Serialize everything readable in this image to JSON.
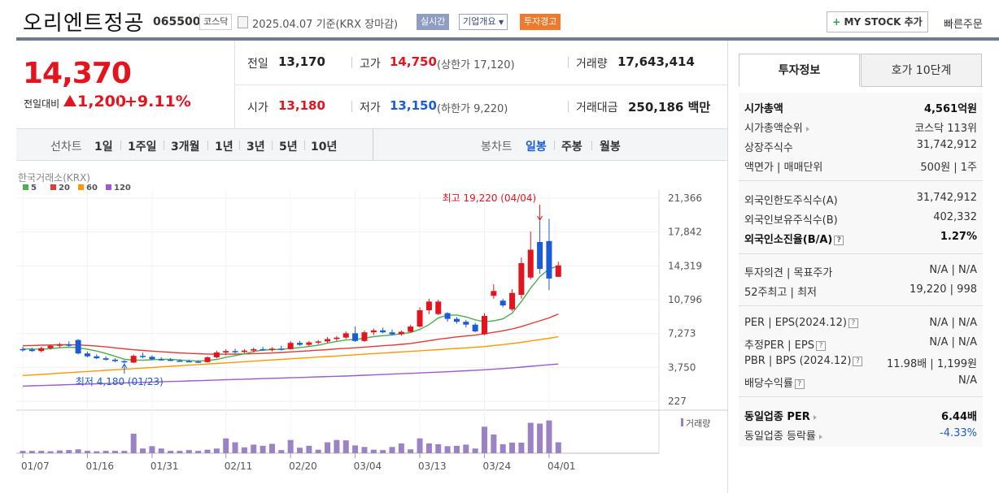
{
  "header": {
    "company": "오리엔트정공",
    "code": "065500",
    "market": "코스닥",
    "date_text": "2025.04.07  기준(KRX 장마감)",
    "realtime": "실시간",
    "company_info": "기업개요",
    "warning": "투자경고",
    "mystock": "MY STOCK 추가",
    "quick_order": "빠른주문"
  },
  "price": {
    "current": "14,370",
    "diff_label": "전일대비",
    "diff": "1,200",
    "pct": "+9.11%"
  },
  "quote": {
    "prev_label": "전일",
    "prev": "13,170",
    "high_label": "고가",
    "high": "14,750",
    "upper": "(상한가 17,120)",
    "volume_label": "거래량",
    "volume": "17,643,414",
    "open_label": "시가",
    "open": "13,180",
    "low_label": "저가",
    "low": "13,150",
    "lower": "(하한가 9,220)",
    "amount_label": "거래대금",
    "amount": "250,186",
    "amount_unit": "백만"
  },
  "period_bar": {
    "line_label": "선차트",
    "ranges": [
      "1일",
      "1주일",
      "3개월",
      "1년",
      "3년",
      "5년",
      "10년"
    ],
    "candle_label": "봉차트",
    "candle": [
      "일봉",
      "주봉",
      "월봉"
    ]
  },
  "chart_data": {
    "type": "candlestick",
    "source": "한국거래소(KRX)",
    "legend": [
      {
        "name": "5",
        "color": "#4caf50"
      },
      {
        "name": "20",
        "color": "#e53935"
      },
      {
        "name": "60",
        "color": "#ff9800"
      },
      {
        "name": "120",
        "color": "#9c59d1"
      }
    ],
    "y_ticks": [
      "21,366",
      "17,842",
      "14,319",
      "10,796",
      "7,273",
      "3,750",
      "227"
    ],
    "ylim": [
      227,
      21366
    ],
    "x_ticks": [
      "01/07",
      "01/16",
      "01/31",
      "02/11",
      "02/20",
      "03/04",
      "03/13",
      "03/24",
      "04/01"
    ],
    "x_tick_index": [
      0,
      7,
      14,
      22,
      29,
      36,
      43,
      50,
      57
    ],
    "high_note": "최고 19,220 (04/04)",
    "low_note": "최저 4,180 (01/23)",
    "volume_label": "거래량",
    "candles": [
      {
        "o": 5650,
        "h": 5900,
        "l": 5400,
        "c": 5600
      },
      {
        "o": 5600,
        "h": 5800,
        "l": 5350,
        "c": 5450
      },
      {
        "o": 5450,
        "h": 5900,
        "l": 5300,
        "c": 5750
      },
      {
        "o": 5750,
        "h": 6100,
        "l": 5600,
        "c": 6000
      },
      {
        "o": 6000,
        "h": 6300,
        "l": 5800,
        "c": 6150
      },
      {
        "o": 6150,
        "h": 6450,
        "l": 5900,
        "c": 6000
      },
      {
        "o": 6600,
        "h": 6700,
        "l": 5100,
        "c": 5200
      },
      {
        "o": 5200,
        "h": 5400,
        "l": 4800,
        "c": 4900
      },
      {
        "o": 4900,
        "h": 5100,
        "l": 4600,
        "c": 4700
      },
      {
        "o": 4700,
        "h": 4900,
        "l": 4450,
        "c": 4550
      },
      {
        "o": 4550,
        "h": 4700,
        "l": 4300,
        "c": 4400
      },
      {
        "o": 4400,
        "h": 4500,
        "l": 4180,
        "c": 4300
      },
      {
        "o": 4250,
        "h": 5100,
        "l": 4200,
        "c": 4950
      },
      {
        "o": 4950,
        "h": 5300,
        "l": 4700,
        "c": 4850
      },
      {
        "o": 4850,
        "h": 5000,
        "l": 4500,
        "c": 4600
      },
      {
        "o": 4600,
        "h": 4800,
        "l": 4450,
        "c": 4550
      },
      {
        "o": 4550,
        "h": 4700,
        "l": 4400,
        "c": 4450
      },
      {
        "o": 4450,
        "h": 4600,
        "l": 4350,
        "c": 4400
      },
      {
        "o": 4400,
        "h": 4550,
        "l": 4300,
        "c": 4350
      },
      {
        "o": 4350,
        "h": 4500,
        "l": 4250,
        "c": 4300
      },
      {
        "o": 4300,
        "h": 4900,
        "l": 4250,
        "c": 4800
      },
      {
        "o": 4800,
        "h": 5500,
        "l": 4700,
        "c": 5300
      },
      {
        "o": 5300,
        "h": 5650,
        "l": 5000,
        "c": 5450
      },
      {
        "o": 5450,
        "h": 5700,
        "l": 5200,
        "c": 5350
      },
      {
        "o": 5350,
        "h": 5650,
        "l": 5200,
        "c": 5500
      },
      {
        "o": 5500,
        "h": 5800,
        "l": 5300,
        "c": 5650
      },
      {
        "o": 5650,
        "h": 5900,
        "l": 5450,
        "c": 5600
      },
      {
        "o": 5600,
        "h": 5850,
        "l": 5400,
        "c": 5700
      },
      {
        "o": 5700,
        "h": 6000,
        "l": 5500,
        "c": 5650
      },
      {
        "o": 5650,
        "h": 6500,
        "l": 5600,
        "c": 6300
      },
      {
        "o": 6300,
        "h": 6500,
        "l": 6000,
        "c": 6100
      },
      {
        "o": 6100,
        "h": 6500,
        "l": 5950,
        "c": 6350
      },
      {
        "o": 6350,
        "h": 6600,
        "l": 6150,
        "c": 6450
      },
      {
        "o": 6450,
        "h": 6900,
        "l": 6300,
        "c": 6700
      },
      {
        "o": 6700,
        "h": 7000,
        "l": 6500,
        "c": 6850
      },
      {
        "o": 6850,
        "h": 7500,
        "l": 6700,
        "c": 7300
      },
      {
        "o": 7300,
        "h": 8000,
        "l": 6400,
        "c": 6500
      },
      {
        "o": 6500,
        "h": 7600,
        "l": 6400,
        "c": 7400
      },
      {
        "o": 7400,
        "h": 7800,
        "l": 7100,
        "c": 7600
      },
      {
        "o": 7600,
        "h": 7900,
        "l": 7300,
        "c": 7400
      },
      {
        "o": 7400,
        "h": 7700,
        "l": 7050,
        "c": 7200
      },
      {
        "o": 7200,
        "h": 7600,
        "l": 7050,
        "c": 7450
      },
      {
        "o": 7450,
        "h": 8200,
        "l": 7400,
        "c": 8000
      },
      {
        "o": 8000,
        "h": 10000,
        "l": 7900,
        "c": 9700
      },
      {
        "o": 9700,
        "h": 10900,
        "l": 9300,
        "c": 10600
      },
      {
        "o": 9300,
        "h": 10800,
        "l": 9200,
        "c": 10600
      },
      {
        "o": 9400,
        "h": 9500,
        "l": 8500,
        "c": 8800
      },
      {
        "o": 8800,
        "h": 9000,
        "l": 8300,
        "c": 8500
      },
      {
        "o": 8500,
        "h": 8700,
        "l": 7900,
        "c": 8200
      },
      {
        "o": 8200,
        "h": 8400,
        "l": 7400,
        "c": 7500
      },
      {
        "o": 7200,
        "h": 9400,
        "l": 7100,
        "c": 9100
      },
      {
        "o": 11200,
        "h": 12400,
        "l": 10900,
        "c": 11700
      },
      {
        "o": 10700,
        "h": 10900,
        "l": 10000,
        "c": 10200
      },
      {
        "o": 9800,
        "h": 11900,
        "l": 9600,
        "c": 11500
      },
      {
        "o": 11300,
        "h": 15200,
        "l": 10900,
        "c": 14600
      },
      {
        "o": 13100,
        "h": 17900,
        "l": 12900,
        "c": 16000
      },
      {
        "o": 16800,
        "h": 19000,
        "l": 13500,
        "c": 14000
      },
      {
        "o": 16900,
        "h": 19220,
        "l": 11800,
        "c": 13000
      },
      {
        "o": 13180,
        "h": 14750,
        "l": 13150,
        "c": 14370
      }
    ],
    "ma5": [
      5700,
      5650,
      5650,
      5700,
      5800,
      5850,
      5800,
      5650,
      5450,
      5200,
      4900,
      4600,
      4500,
      4500,
      4550,
      4600,
      4580,
      4520,
      4450,
      4420,
      4460,
      4580,
      4800,
      4980,
      5150,
      5400,
      5550,
      5600,
      5630,
      5720,
      5820,
      5930,
      6060,
      6280,
      6450,
      6600,
      6650,
      6800,
      6950,
      7050,
      7130,
      7250,
      7380,
      7700,
      8200,
      8900,
      9200,
      9200,
      9000,
      8700,
      8500,
      8600,
      8800,
      9400,
      10600,
      12000,
      13200,
      14000,
      14300
    ],
    "ma20": [
      6000,
      6030,
      6060,
      6080,
      6100,
      6110,
      6090,
      6040,
      5970,
      5880,
      5780,
      5680,
      5590,
      5510,
      5440,
      5380,
      5320,
      5260,
      5210,
      5170,
      5140,
      5120,
      5120,
      5130,
      5150,
      5180,
      5210,
      5250,
      5300,
      5360,
      5420,
      5480,
      5540,
      5600,
      5670,
      5730,
      5790,
      5860,
      5930,
      6000,
      6070,
      6150,
      6240,
      6380,
      6520,
      6680,
      6800,
      6920,
      7020,
      7110,
      7250,
      7400,
      7560,
      7750,
      8000,
      8300,
      8600,
      8900,
      9300
    ],
    "ma60": [
      2900,
      2960,
      3020,
      3080,
      3140,
      3200,
      3260,
      3320,
      3380,
      3440,
      3500,
      3560,
      3620,
      3680,
      3740,
      3800,
      3860,
      3920,
      3980,
      4040,
      4100,
      4160,
      4220,
      4280,
      4340,
      4400,
      4460,
      4520,
      4580,
      4640,
      4700,
      4760,
      4820,
      4880,
      4940,
      5000,
      5060,
      5120,
      5180,
      5240,
      5300,
      5360,
      5420,
      5480,
      5540,
      5600,
      5660,
      5720,
      5780,
      5840,
      5920,
      6020,
      6120,
      6230,
      6360,
      6500,
      6640,
      6780,
      6930
    ],
    "ma120": [
      1800,
      1830,
      1860,
      1890,
      1920,
      1950,
      1980,
      2010,
      2040,
      2070,
      2100,
      2130,
      2160,
      2190,
      2220,
      2250,
      2280,
      2310,
      2340,
      2370,
      2400,
      2430,
      2460,
      2490,
      2520,
      2550,
      2580,
      2610,
      2640,
      2670,
      2700,
      2730,
      2760,
      2790,
      2820,
      2850,
      2890,
      2930,
      2970,
      3010,
      3050,
      3090,
      3130,
      3170,
      3210,
      3250,
      3300,
      3350,
      3400,
      3450,
      3500,
      3560,
      3630,
      3700,
      3780,
      3860,
      3940,
      4020,
      4100
    ],
    "volumes": [
      0.06,
      0.06,
      0.06,
      0.05,
      0.07,
      0.08,
      0.1,
      0.06,
      0.05,
      0.06,
      0.06,
      0.06,
      0.5,
      0.12,
      0.18,
      0.12,
      0.06,
      0.06,
      0.08,
      0.06,
      0.09,
      0.12,
      0.38,
      0.28,
      0.15,
      0.22,
      0.19,
      0.24,
      0.08,
      0.34,
      0.14,
      0.19,
      0.09,
      0.28,
      0.34,
      0.33,
      0.2,
      0.16,
      0.09,
      0.08,
      0.16,
      0.25,
      0.1,
      0.38,
      0.25,
      0.23,
      0.18,
      0.19,
      0.22,
      0.12,
      0.68,
      0.48,
      0.23,
      0.27,
      0.27,
      0.78,
      0.76,
      0.84,
      0.28
    ]
  },
  "info": {
    "tab_invest": "투자정보",
    "tab_hoga": "호가 10단계",
    "market_cap_label": "시가총액",
    "market_cap": "4,561억원",
    "cap_rank_label": "시가총액순위",
    "cap_rank": "코스닥 113위",
    "shares_label": "상장주식수",
    "shares": "31,742,912",
    "par_label": "액면가 | 매매단위",
    "par": "500원 | 1주",
    "foreign_limit_label": "외국인한도주식수(A)",
    "foreign_limit": "31,742,912",
    "foreign_hold_label": "외국인보유주식수(B)",
    "foreign_hold": "402,332",
    "foreign_ratio_label": "외국인소진율(B/A)",
    "foreign_ratio": "1.27%",
    "opinion_label": "투자의견 | 목표주가",
    "opinion": "N/A | N/A",
    "wk52_label": "52주최고 | 최저",
    "wk52": "19,220 | 998",
    "per_label": "PER | EPS(2024.12)",
    "per": "N/A | N/A",
    "est_per_label": "추정PER | EPS",
    "est_per": "N/A | N/A",
    "pbr_label": "PBR | BPS (2024.12)",
    "pbr": "11.98배 | 1,199원",
    "div_label": "배당수익률",
    "div": "N/A",
    "ind_per_label": "동일업종 PER",
    "ind_per": "6.44배",
    "ind_chg_label": "동일업종 등락률",
    "ind_chg": "-4.33%"
  }
}
